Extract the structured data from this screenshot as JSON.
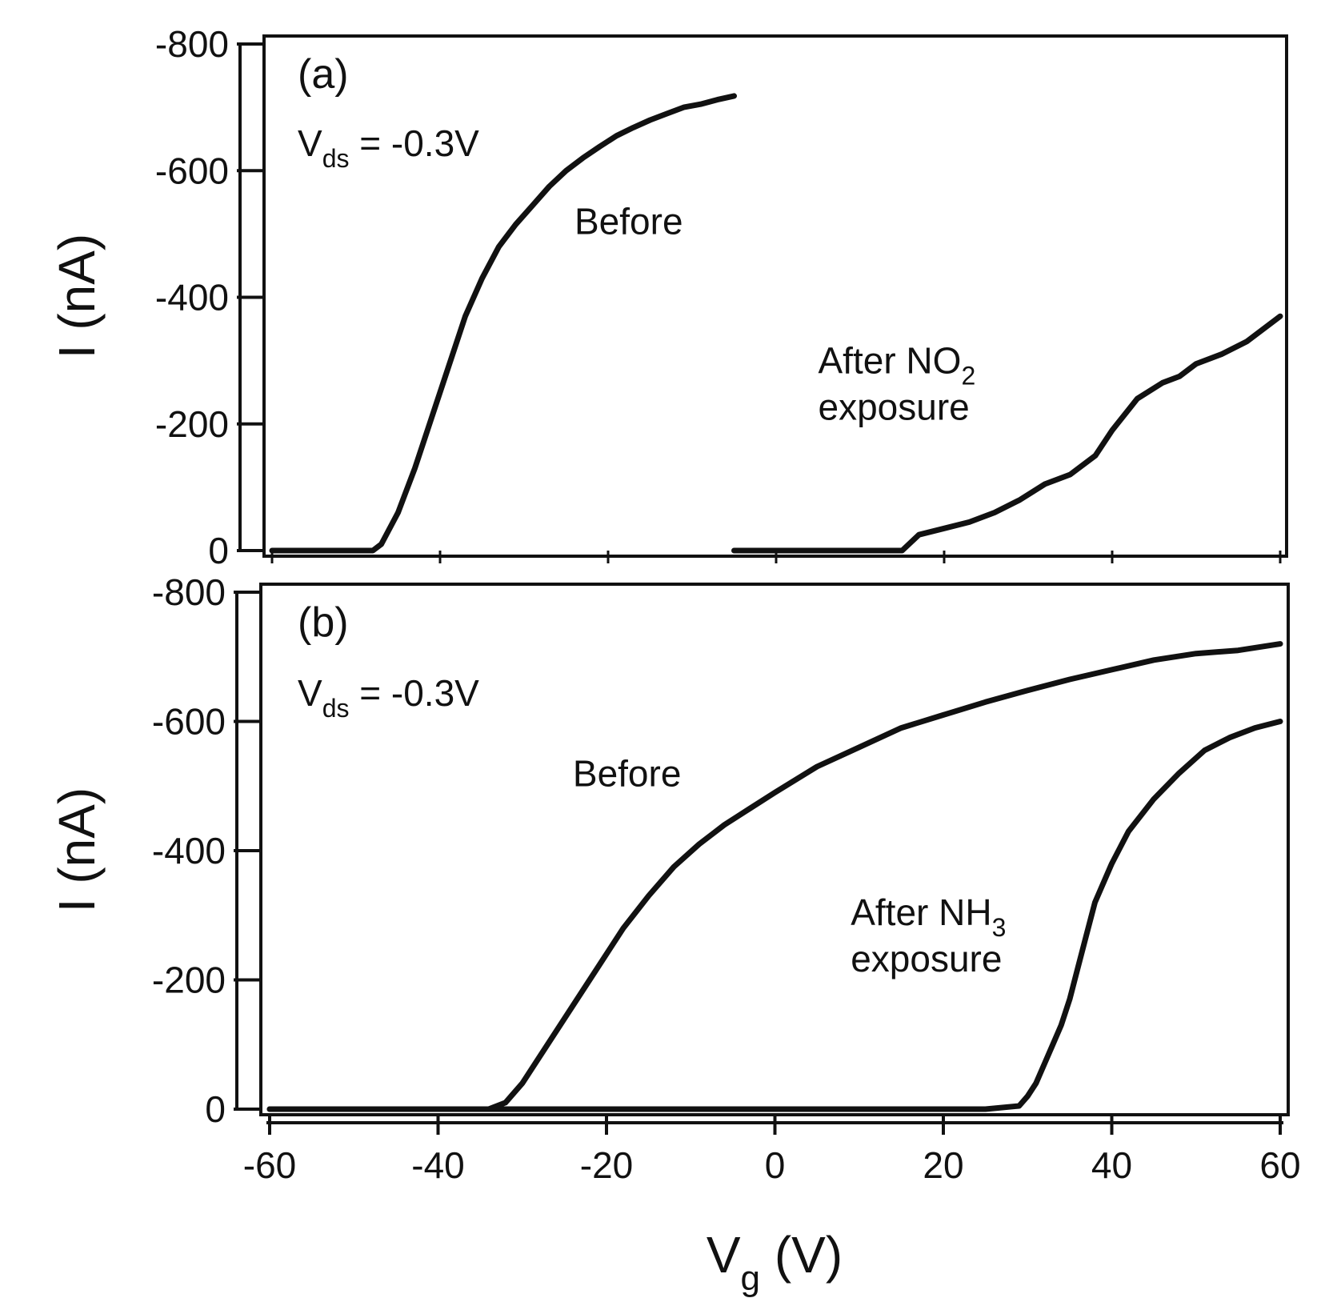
{
  "chart_data": [
    {
      "type": "line",
      "panel_label": "(a)",
      "condition": {
        "main": "V",
        "sub": "ds",
        "rest": " = -0.3V"
      },
      "xlim": [
        -60,
        60
      ],
      "ylim": [
        0,
        -800
      ],
      "xlabel": {
        "main": "V",
        "sub": "g",
        "rest": " (V)"
      },
      "ylabel": "I (nA)",
      "yticks": [
        0,
        -200,
        -400,
        -600,
        -800
      ],
      "ytick_labels": [
        "0",
        "-200",
        "-400",
        "-600",
        "-800"
      ],
      "series": [
        {
          "name": "Before",
          "label_lines": [
            "Before"
          ],
          "label_anchor": {
            "x": -24,
            "y": -500
          },
          "x": [
            -60,
            -50,
            -48,
            -47,
            -45,
            -43,
            -41,
            -39,
            -37,
            -35,
            -33,
            -31,
            -29,
            -27,
            -25,
            -23,
            -21,
            -19,
            -17,
            -15,
            -13,
            -11,
            -9,
            -7,
            -5
          ],
          "y": [
            0,
            0,
            0,
            -10,
            -60,
            -130,
            -210,
            -290,
            -370,
            -430,
            -480,
            -515,
            -545,
            -575,
            -600,
            -620,
            -638,
            -655,
            -668,
            -680,
            -690,
            -700,
            -705,
            -712,
            -718
          ]
        },
        {
          "name": "After NO2 exposure",
          "label_lines": [
            "After NO",
            "exposure"
          ],
          "label_sub": "2",
          "label_anchor": {
            "x": 5,
            "y": -280
          },
          "x": [
            -5,
            0,
            5,
            10,
            15,
            17,
            20,
            23,
            26,
            29,
            32,
            35,
            38,
            40,
            43,
            46,
            48,
            50,
            53,
            56,
            58,
            60
          ],
          "y": [
            0,
            0,
            0,
            0,
            0,
            -25,
            -35,
            -45,
            -60,
            -80,
            -105,
            -120,
            -150,
            -190,
            -240,
            -265,
            -275,
            -295,
            -310,
            -330,
            -350,
            -370
          ]
        }
      ]
    },
    {
      "type": "line",
      "panel_label": "(b)",
      "condition": {
        "main": "V",
        "sub": "ds",
        "rest": " = -0.3V"
      },
      "xlim": [
        -60,
        60
      ],
      "ylim": [
        0,
        -800
      ],
      "xlabel": {
        "main": "V",
        "sub": "g",
        "rest": " (V)"
      },
      "ylabel": "I (nA)",
      "xticks": [
        -60,
        -40,
        -20,
        0,
        20,
        40,
        60
      ],
      "xtick_labels": [
        "-60",
        "-40",
        "-20",
        "0",
        "20",
        "40",
        "60"
      ],
      "yticks": [
        0,
        -200,
        -400,
        -600,
        -800
      ],
      "ytick_labels": [
        "0",
        "-200",
        "-400",
        "-600",
        "-800"
      ],
      "series": [
        {
          "name": "Before",
          "label_lines": [
            "Before"
          ],
          "label_anchor": {
            "x": -24,
            "y": -500
          },
          "x": [
            -60,
            -40,
            -34,
            -32,
            -30,
            -27,
            -24,
            -21,
            -18,
            -15,
            -12,
            -9,
            -6,
            -3,
            0,
            5,
            10,
            15,
            20,
            25,
            30,
            35,
            40,
            45,
            50,
            55,
            60
          ],
          "y": [
            0,
            0,
            0,
            -10,
            -40,
            -100,
            -160,
            -220,
            -280,
            -330,
            -375,
            -410,
            -440,
            -465,
            -490,
            -530,
            -560,
            -590,
            -610,
            -630,
            -648,
            -665,
            -680,
            -695,
            -705,
            -710,
            -720
          ]
        },
        {
          "name": "After NH3 exposure",
          "label_lines": [
            "After NH",
            "exposure"
          ],
          "label_sub": "3",
          "label_anchor": {
            "x": 9,
            "y": -285
          },
          "x": [
            -60,
            -40,
            -20,
            0,
            20,
            25,
            29,
            30,
            31,
            32,
            33,
            34,
            35,
            36,
            37,
            38,
            40,
            42,
            45,
            48,
            51,
            54,
            57,
            60
          ],
          "y": [
            0,
            0,
            0,
            0,
            0,
            0,
            -5,
            -20,
            -40,
            -70,
            -100,
            -130,
            -170,
            -220,
            -270,
            -320,
            -380,
            -430,
            -480,
            -520,
            -555,
            -575,
            -590,
            -600
          ]
        }
      ]
    }
  ]
}
